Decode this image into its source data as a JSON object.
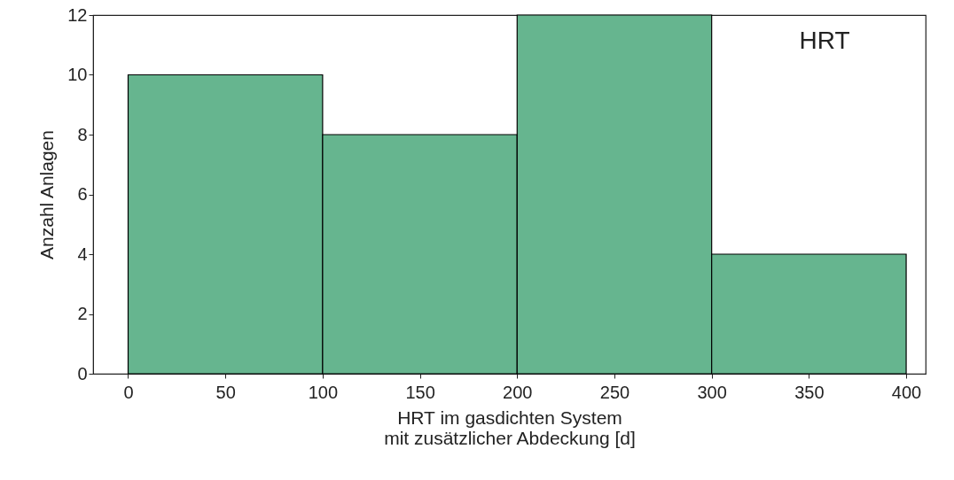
{
  "chart_data": {
    "type": "histogram",
    "xlabel": "HRT im gasdichten System\nmit zusätzlicher Abdeckung [d]",
    "ylabel": "Anzahl Anlagen",
    "annotations": [
      "HRT"
    ],
    "bins": [
      0,
      100,
      200,
      300,
      400
    ],
    "values": [
      10,
      8,
      12,
      4
    ],
    "color": "#66b58f",
    "xlim": [
      -18,
      410
    ],
    "xticks": [
      0,
      50,
      100,
      150,
      200,
      250,
      300,
      350,
      400
    ],
    "ylim": [
      0,
      12
    ],
    "yticks": [
      0,
      2,
      4,
      6,
      8,
      10,
      12
    ],
    "grid": false
  }
}
